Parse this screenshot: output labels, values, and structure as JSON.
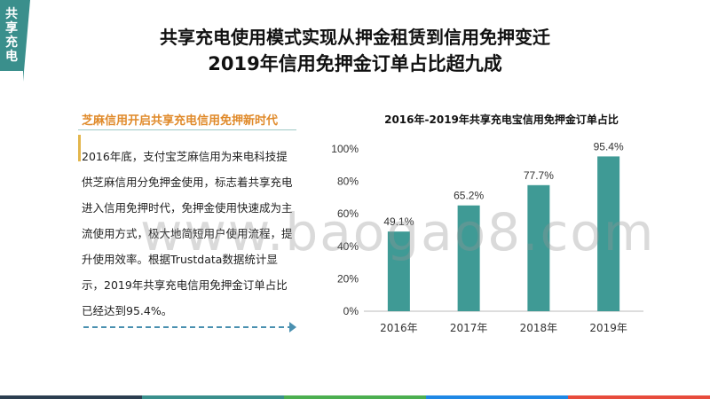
{
  "corner_label": "共享充电",
  "title_line1": "共享充电使用模式实现从押金租赁到信用免押变迁",
  "title_line2": "2019年信用免押金订单占比超九成",
  "left_panel": {
    "subheading": "芝麻信用开启共享充电信用免押新时代",
    "body": "2016年底，支付宝芝麻信用为来电科技提供芝麻信用分免押金使用，标志着共享充电进入信用免押时代，免押金使用快速成为主流使用方式，极大地简短用户使用流程，提升使用效率。根据Trustdata数据统计显示，2019年共享充电信用免押金订单占比已经达到95.4%。"
  },
  "watermark": "www.baogao8.com",
  "colors": {
    "accent": "#3a8f8c",
    "bar": "#3f9a95",
    "subheading": "#e08a2a",
    "bottom_stripes": [
      "#2c3e50",
      "#3a8f8c",
      "#4caf50",
      "#1e88e5",
      "#e74c3c"
    ]
  },
  "chart_data": {
    "type": "bar",
    "title": "2016年-2019年共享充电宝信用免押金订单占比",
    "categories": [
      "2016年",
      "2017年",
      "2018年",
      "2019年"
    ],
    "values": [
      49.1,
      65.2,
      77.7,
      95.4
    ],
    "data_labels": [
      "49.1%",
      "65.2%",
      "77.7%",
      "95.4%"
    ],
    "yticks": [
      "0%",
      "20%",
      "40%",
      "60%",
      "80%",
      "100%"
    ],
    "ylim": [
      0,
      100
    ],
    "grid": false,
    "legend": "none"
  }
}
